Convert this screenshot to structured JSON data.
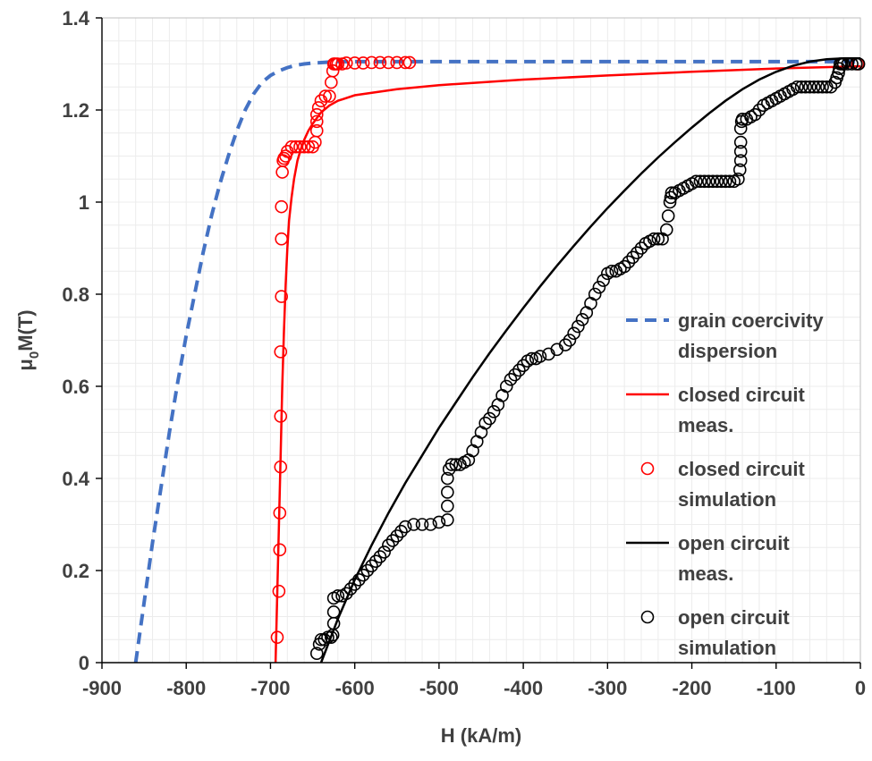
{
  "chart_data": {
    "type": "line",
    "xlabel": "H (kA/m)",
    "ylabel": {
      "prefix": "μ",
      "subscript": "0",
      "suffix": "M(T)"
    },
    "xlim": [
      -900,
      0
    ],
    "ylim": [
      0,
      1.4
    ],
    "x_ticks": [
      -900,
      -800,
      -700,
      -600,
      -500,
      -400,
      -300,
      -200,
      -100,
      0
    ],
    "y_ticks": [
      0,
      0.2,
      0.4,
      0.6,
      0.8,
      1,
      1.2,
      1.4
    ],
    "x_tick_labels": [
      "-900",
      "-800",
      "-700",
      "-600",
      "-500",
      "-400",
      "-300",
      "-200",
      "-100",
      "0"
    ],
    "y_tick_labels": [
      "0",
      "0.2",
      "0.4",
      "0.6",
      "0.8",
      "1",
      "1.2",
      "1.4"
    ],
    "grid": true,
    "legend_position": "right",
    "series": [
      {
        "name": "grain coercivity dispersion",
        "legend_lines": [
          "grain coercivity",
          "dispersion"
        ],
        "style": "dashed",
        "color": "#4472C4",
        "x": [
          -860,
          -850,
          -840,
          -830,
          -820,
          -810,
          -800,
          -790,
          -780,
          -770,
          -760,
          -750,
          -740,
          -730,
          -720,
          -710,
          -700,
          -690,
          -680,
          -670,
          -660,
          -650,
          -640,
          -630,
          -620,
          -600,
          -500,
          -300,
          0
        ],
        "y": [
          0,
          0.13,
          0.26,
          0.38,
          0.5,
          0.61,
          0.71,
          0.8,
          0.89,
          0.97,
          1.04,
          1.1,
          1.155,
          1.2,
          1.235,
          1.26,
          1.275,
          1.285,
          1.292,
          1.297,
          1.3,
          1.302,
          1.303,
          1.304,
          1.305,
          1.305,
          1.305,
          1.305,
          1.305
        ]
      },
      {
        "name": "closed circuit meas.",
        "legend_lines": [
          "closed circuit",
          "meas."
        ],
        "style": "solid",
        "color": "#FF0000",
        "x": [
          -694,
          -692,
          -690,
          -688,
          -686,
          -684,
          -682,
          -680,
          -678,
          -675,
          -672,
          -668,
          -664,
          -660,
          -655,
          -650,
          -640,
          -630,
          -620,
          -600,
          -550,
          -500,
          -400,
          -300,
          -200,
          -100,
          0
        ],
        "y": [
          0,
          0.15,
          0.3,
          0.45,
          0.6,
          0.72,
          0.82,
          0.9,
          0.96,
          1.01,
          1.05,
          1.09,
          1.115,
          1.135,
          1.155,
          1.17,
          1.195,
          1.21,
          1.22,
          1.232,
          1.245,
          1.254,
          1.266,
          1.275,
          1.283,
          1.29,
          1.295
        ]
      },
      {
        "name": "closed circuit simulation",
        "legend_lines": [
          "closed circuit",
          "simulation"
        ],
        "style": "markers",
        "color": "#FF0000",
        "x": [
          -692,
          -690,
          -689,
          -689,
          -688,
          -688,
          -688,
          -687,
          -687,
          -687,
          -686,
          -685,
          -684,
          -682,
          -680,
          -675,
          -670,
          -665,
          -660,
          -655,
          -650,
          -647,
          -645,
          -645,
          -645,
          -643,
          -640,
          -635,
          -630,
          -628,
          -626,
          -625,
          -624,
          -622,
          -620,
          -615,
          -610,
          -600,
          -590,
          -580,
          -570,
          -560,
          -550,
          -540,
          -535,
          -3
        ],
        "y": [
          0.055,
          0.155,
          0.245,
          0.325,
          0.425,
          0.535,
          0.675,
          0.795,
          0.92,
          0.99,
          1.065,
          1.09,
          1.095,
          1.1,
          1.11,
          1.12,
          1.12,
          1.12,
          1.12,
          1.12,
          1.12,
          1.13,
          1.155,
          1.175,
          1.19,
          1.205,
          1.22,
          1.23,
          1.23,
          1.26,
          1.285,
          1.3,
          1.3,
          1.3,
          1.3,
          1.3,
          1.302,
          1.302,
          1.302,
          1.303,
          1.303,
          1.303,
          1.303,
          1.303,
          1.303,
          1.3
        ]
      },
      {
        "name": "open circuit meas.",
        "legend_lines": [
          "open circuit",
          "meas."
        ],
        "style": "solid",
        "color": "#000000",
        "x": [
          -640,
          -620,
          -600,
          -580,
          -560,
          -540,
          -520,
          -500,
          -480,
          -460,
          -440,
          -420,
          -400,
          -380,
          -360,
          -340,
          -320,
          -300,
          -280,
          -260,
          -240,
          -220,
          -200,
          -180,
          -160,
          -140,
          -120,
          -100,
          -80,
          -60,
          -40,
          -20,
          0
        ],
        "y": [
          0,
          0.095,
          0.18,
          0.255,
          0.325,
          0.39,
          0.45,
          0.51,
          0.565,
          0.62,
          0.672,
          0.722,
          0.77,
          0.817,
          0.862,
          0.905,
          0.947,
          0.987,
          1.025,
          1.062,
          1.097,
          1.13,
          1.162,
          1.192,
          1.22,
          1.245,
          1.266,
          1.283,
          1.296,
          1.305,
          1.31,
          1.312,
          1.312
        ]
      },
      {
        "name": "open circuit simulation",
        "legend_lines": [
          "open circuit",
          "simulation"
        ],
        "style": "markers",
        "color": "#000000",
        "x": [
          -645,
          -642,
          -640,
          -636,
          -632,
          -628,
          -626,
          -625,
          -625,
          -625,
          -620,
          -615,
          -610,
          -605,
          -600,
          -595,
          -590,
          -585,
          -580,
          -575,
          -570,
          -565,
          -560,
          -555,
          -550,
          -545,
          -540,
          -530,
          -520,
          -510,
          -500,
          -490,
          -490,
          -490,
          -490,
          -488,
          -485,
          -480,
          -475,
          -470,
          -465,
          -460,
          -455,
          -450,
          -445,
          -440,
          -435,
          -430,
          -425,
          -420,
          -415,
          -410,
          -405,
          -400,
          -395,
          -390,
          -385,
          -380,
          -370,
          -360,
          -350,
          -345,
          -340,
          -335,
          -330,
          -325,
          -320,
          -315,
          -310,
          -305,
          -300,
          -295,
          -290,
          -285,
          -280,
          -275,
          -270,
          -265,
          -260,
          -255,
          -250,
          -245,
          -240,
          -235,
          -230,
          -228,
          -226,
          -225,
          -224,
          -220,
          -215,
          -210,
          -205,
          -200,
          -195,
          -190,
          -185,
          -180,
          -175,
          -170,
          -165,
          -160,
          -155,
          -150,
          -145,
          -143,
          -142,
          -142,
          -142,
          -142,
          -141,
          -140,
          -135,
          -130,
          -125,
          -120,
          -115,
          -110,
          -105,
          -100,
          -95,
          -90,
          -85,
          -80,
          -75,
          -70,
          -65,
          -60,
          -55,
          -50,
          -45,
          -40,
          -35,
          -30,
          -28,
          -26,
          -25,
          -24,
          -22,
          -20,
          -15,
          -10,
          -5,
          -2
        ],
        "y": [
          0.02,
          0.04,
          0.05,
          0.05,
          0.055,
          0.055,
          0.06,
          0.085,
          0.11,
          0.14,
          0.145,
          0.145,
          0.15,
          0.16,
          0.17,
          0.18,
          0.19,
          0.2,
          0.21,
          0.22,
          0.23,
          0.24,
          0.255,
          0.265,
          0.275,
          0.285,
          0.295,
          0.3,
          0.3,
          0.3,
          0.305,
          0.31,
          0.34,
          0.37,
          0.4,
          0.42,
          0.43,
          0.43,
          0.43,
          0.435,
          0.44,
          0.46,
          0.48,
          0.5,
          0.52,
          0.53,
          0.545,
          0.56,
          0.58,
          0.6,
          0.615,
          0.625,
          0.635,
          0.645,
          0.655,
          0.66,
          0.66,
          0.665,
          0.67,
          0.68,
          0.69,
          0.7,
          0.715,
          0.73,
          0.745,
          0.76,
          0.78,
          0.8,
          0.815,
          0.83,
          0.845,
          0.85,
          0.85,
          0.855,
          0.86,
          0.87,
          0.88,
          0.89,
          0.9,
          0.91,
          0.915,
          0.92,
          0.92,
          0.92,
          0.94,
          0.97,
          1.0,
          1.01,
          1.02,
          1.02,
          1.025,
          1.03,
          1.035,
          1.04,
          1.045,
          1.045,
          1.045,
          1.045,
          1.045,
          1.045,
          1.045,
          1.045,
          1.045,
          1.045,
          1.05,
          1.07,
          1.09,
          1.11,
          1.13,
          1.16,
          1.175,
          1.18,
          1.18,
          1.185,
          1.19,
          1.2,
          1.21,
          1.215,
          1.22,
          1.225,
          1.23,
          1.235,
          1.24,
          1.245,
          1.25,
          1.25,
          1.25,
          1.25,
          1.25,
          1.25,
          1.25,
          1.25,
          1.25,
          1.26,
          1.27,
          1.28,
          1.29,
          1.3,
          1.3,
          1.3,
          1.3,
          1.3,
          1.3,
          1.3
        ]
      }
    ]
  }
}
